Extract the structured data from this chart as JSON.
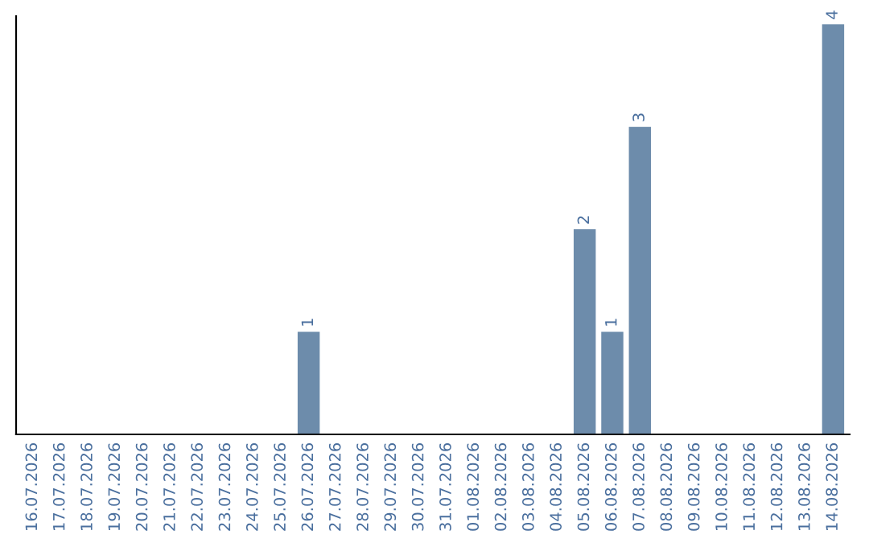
{
  "chart_data": {
    "type": "bar",
    "categories": [
      "16.07.2026",
      "17.07.2026",
      "18.07.2026",
      "19.07.2026",
      "20.07.2026",
      "21.07.2026",
      "22.07.2026",
      "23.07.2026",
      "24.07.2026",
      "25.07.2026",
      "26.07.2026",
      "27.07.2026",
      "28.07.2026",
      "29.07.2026",
      "30.07.2026",
      "31.07.2026",
      "01.08.2026",
      "02.08.2026",
      "03.08.2026",
      "04.08.2026",
      "05.08.2026",
      "06.08.2026",
      "07.08.2026",
      "08.08.2026",
      "09.08.2026",
      "10.08.2026",
      "11.08.2026",
      "12.08.2026",
      "13.08.2026",
      "14.08.2026"
    ],
    "values": [
      0,
      0,
      0,
      0,
      0,
      0,
      0,
      0,
      0,
      0,
      1,
      0,
      0,
      0,
      0,
      0,
      0,
      0,
      0,
      0,
      2,
      1,
      3,
      0,
      0,
      0,
      0,
      0,
      0,
      4
    ],
    "value_labels": [
      null,
      null,
      null,
      null,
      null,
      null,
      null,
      null,
      null,
      null,
      "1",
      null,
      null,
      null,
      null,
      null,
      null,
      null,
      null,
      null,
      "2",
      "1",
      "3",
      null,
      null,
      null,
      null,
      null,
      null,
      "4"
    ],
    "color": "#6d8cab",
    "tick_labels": "x",
    "grid": false,
    "legend": false
  }
}
